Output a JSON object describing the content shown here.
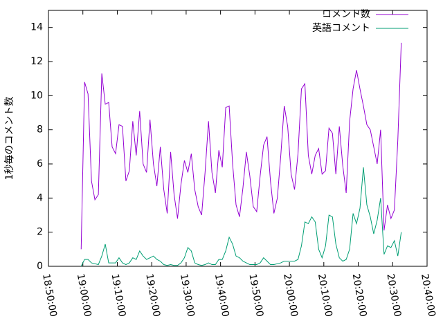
{
  "chart_data": {
    "type": "line",
    "y_label": "1秒毎のコメント数",
    "legend": "top-right",
    "xlim": [
      "18:50:00",
      "20:40:00"
    ],
    "xticks": [
      "18:50:00",
      "19:00:00",
      "19:10:00",
      "19:20:00",
      "19:30:00",
      "19:40:00",
      "19:50:00",
      "20:00:00",
      "20:10:00",
      "20:20:00",
      "20:30:00",
      "20:40:00"
    ],
    "ylim": [
      0,
      15
    ],
    "yticks": [
      0,
      2,
      4,
      6,
      8,
      10,
      12,
      14
    ],
    "x": [
      "18:59:30",
      "19:00:30",
      "19:01:30",
      "19:02:30",
      "19:03:30",
      "19:04:30",
      "19:05:30",
      "19:06:30",
      "19:07:30",
      "19:08:30",
      "19:09:30",
      "19:10:30",
      "19:11:30",
      "19:12:30",
      "19:13:30",
      "19:14:30",
      "19:15:30",
      "19:16:30",
      "19:17:30",
      "19:18:30",
      "19:19:30",
      "19:20:30",
      "19:21:30",
      "19:22:30",
      "19:23:30",
      "19:24:30",
      "19:25:30",
      "19:26:30",
      "19:27:30",
      "19:28:30",
      "19:29:30",
      "19:30:30",
      "19:31:30",
      "19:32:30",
      "19:33:30",
      "19:34:30",
      "19:35:30",
      "19:36:30",
      "19:37:30",
      "19:38:30",
      "19:39:30",
      "19:40:30",
      "19:41:30",
      "19:42:30",
      "19:43:30",
      "19:44:30",
      "19:45:30",
      "19:46:30",
      "19:47:30",
      "19:48:30",
      "19:49:30",
      "19:50:30",
      "19:51:30",
      "19:52:30",
      "19:53:30",
      "19:54:30",
      "19:55:30",
      "19:56:30",
      "19:57:30",
      "19:58:30",
      "19:59:30",
      "20:00:30",
      "20:01:30",
      "20:02:30",
      "20:03:30",
      "20:04:30",
      "20:05:30",
      "20:06:30",
      "20:07:30",
      "20:08:30",
      "20:09:30",
      "20:10:30",
      "20:11:30",
      "20:12:30",
      "20:13:30",
      "20:14:30",
      "20:15:30",
      "20:16:30",
      "20:17:30",
      "20:18:30",
      "20:19:30",
      "20:20:30",
      "20:21:30",
      "20:22:30",
      "20:23:30",
      "20:24:30",
      "20:25:30",
      "20:26:30",
      "20:27:30",
      "20:28:30",
      "20:29:30",
      "20:30:30",
      "20:31:30",
      "20:32:30"
    ],
    "series": [
      {
        "name": "コメント数",
        "color": "#9400d3",
        "values": [
          1,
          10.8,
          10.1,
          5,
          3.9,
          4.2,
          11.3,
          9.5,
          9.6,
          7,
          6.6,
          8.3,
          8.2,
          5,
          5.6,
          8.5,
          6.5,
          9.1,
          6,
          5.5,
          8.6,
          6,
          4.7,
          7,
          4.5,
          3.1,
          6.7,
          4.2,
          2.8,
          4.8,
          6.2,
          5.5,
          6.6,
          4.5,
          3.5,
          3,
          5.5,
          8.5,
          5.5,
          4.3,
          6.8,
          5.8,
          9.3,
          9.4,
          6,
          3.6,
          2.9,
          4.6,
          6.7,
          5.3,
          3.5,
          3.2,
          5.3,
          7.1,
          7.6,
          5,
          3.1,
          4,
          6.5,
          9.4,
          8.2,
          5.4,
          4.5,
          6.6,
          10.4,
          10.7,
          6.5,
          5.4,
          6.5,
          6.9,
          5.4,
          5.6,
          8.1,
          7.8,
          5.4,
          8.2,
          5.9,
          4.3,
          8.5,
          10.4,
          11.5,
          10.4,
          9.4,
          8.3,
          8,
          7,
          6,
          8,
          2.1,
          3.6,
          2.8,
          3.3,
          7.4,
          13.1
        ]
      },
      {
        "name": "英語コメント",
        "color": "#009e73",
        "values": [
          0,
          0.4,
          0.4,
          0.2,
          0.15,
          0.1,
          0.6,
          1.3,
          0.2,
          0.2,
          0.2,
          0.5,
          0.2,
          0.1,
          0.2,
          0.5,
          0.4,
          0.9,
          0.6,
          0.4,
          0.5,
          0.6,
          0.4,
          0.3,
          0.1,
          0.05,
          0.1,
          0.05,
          0.05,
          0.2,
          0.5,
          1.1,
          0.9,
          0.2,
          0.1,
          0.05,
          0.1,
          0.2,
          0.1,
          0.1,
          0.4,
          0.4,
          0.9,
          1.7,
          1.3,
          0.6,
          0.5,
          0.3,
          0.2,
          0.1,
          0.1,
          0.1,
          0.2,
          0.5,
          0.3,
          0.1,
          0.1,
          0.15,
          0.2,
          0.3,
          0.3,
          0.3,
          0.3,
          0.4,
          1.2,
          2.6,
          2.5,
          2.9,
          2.6,
          1.0,
          0.5,
          1.2,
          3.0,
          2.9,
          1.3,
          0.5,
          0.3,
          0.4,
          1.0,
          3.1,
          2.5,
          3.4,
          5.8,
          3.6,
          2.9,
          1.9,
          2.7,
          4.0,
          0.7,
          1.2,
          1.1,
          1.5,
          0.6,
          2.0
        ]
      }
    ]
  }
}
